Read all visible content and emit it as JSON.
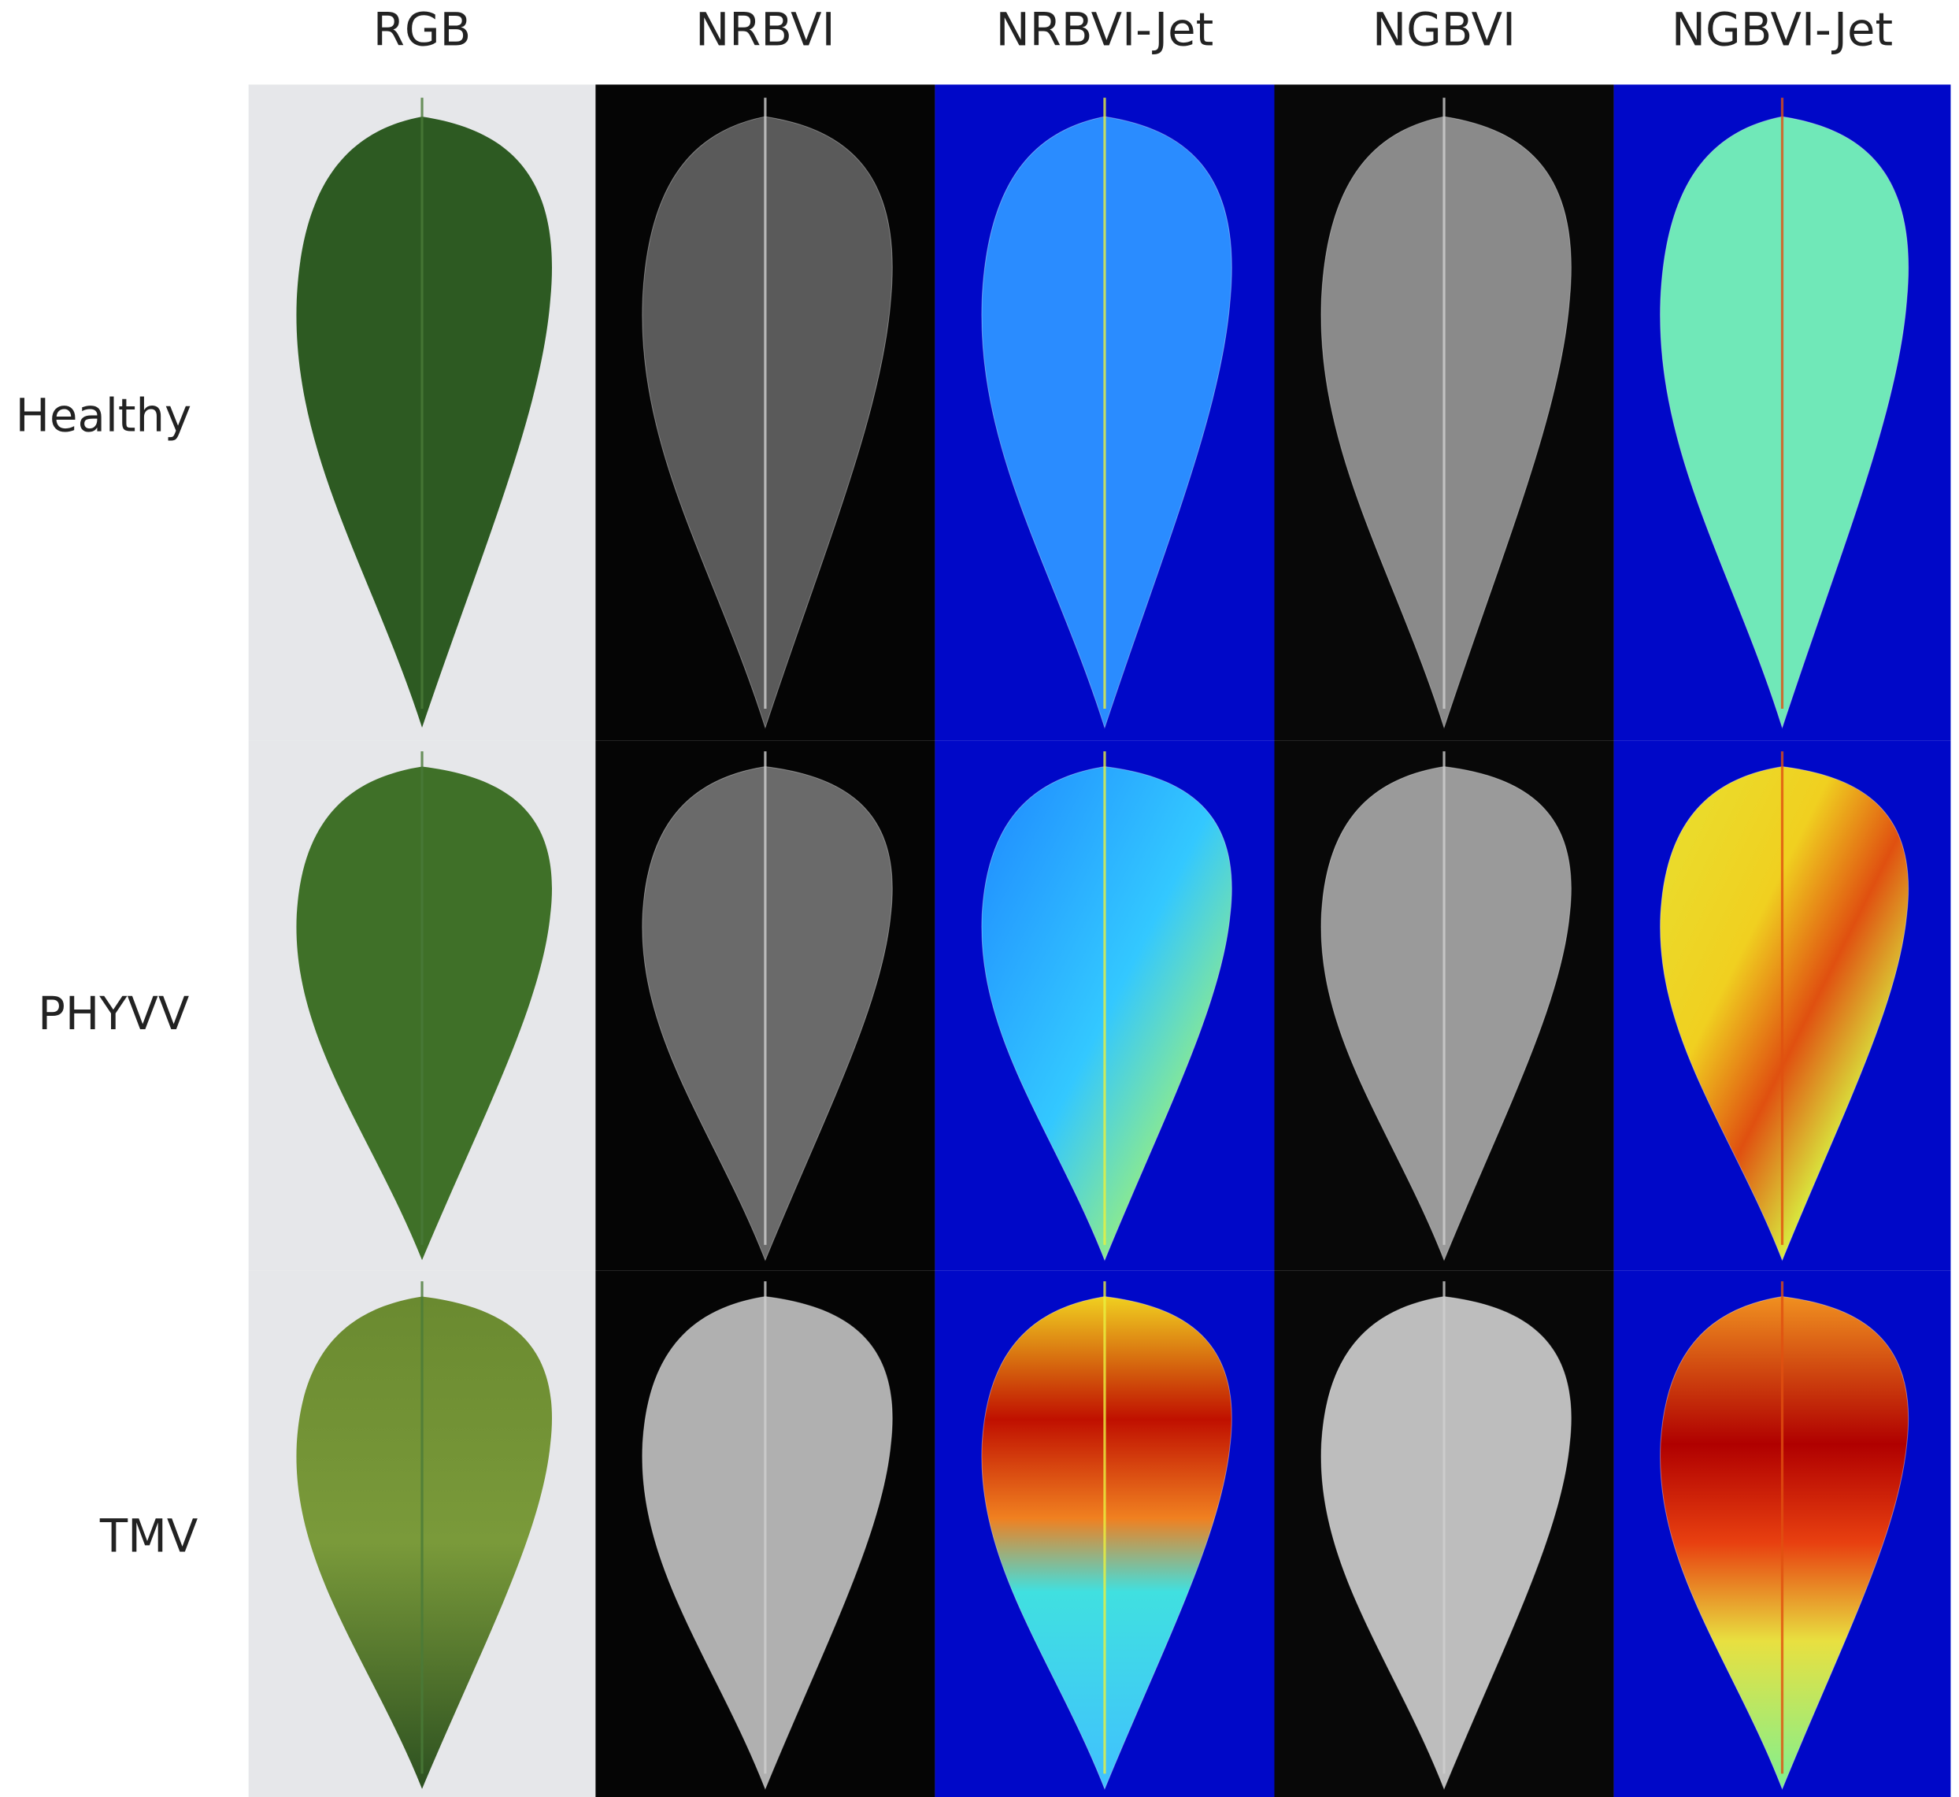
{
  "columns": [
    "RGB",
    "NRBVI",
    "NRBVI-Jet",
    "NGBVI",
    "NGBVI-Jet"
  ],
  "rows": [
    "Healthy",
    "PHYVV",
    "TMV"
  ]
}
